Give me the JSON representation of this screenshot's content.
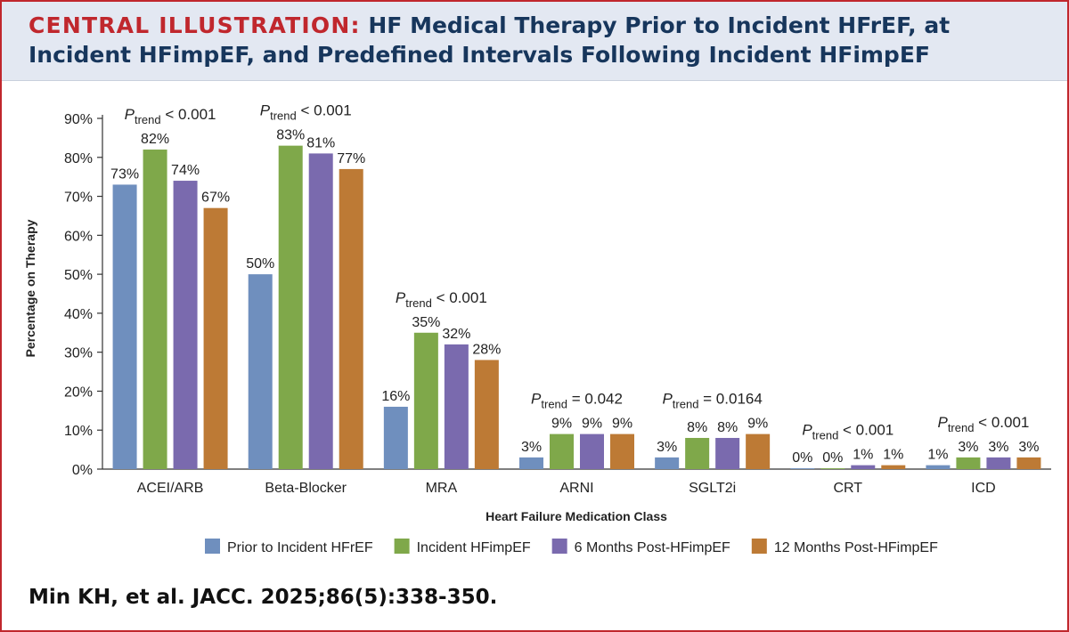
{
  "title": {
    "lead": "CENTRAL ILLUSTRATION:",
    "rest": "HF Medical Therapy Prior to Incident HFrEF, at Incident HFimpEF, and Predefined Intervals Following Incident HFimpEF"
  },
  "citation": "Min KH, et al. JACC. 2025;86(5):338-350.",
  "chart_data": {
    "type": "bar",
    "xlabel": "Heart Failure Medication Class",
    "ylabel": "Percentage on Therapy",
    "ylim": [
      0,
      90
    ],
    "yticks": [
      "0%",
      "10%",
      "20%",
      "30%",
      "40%",
      "50%",
      "60%",
      "70%",
      "80%",
      "90%"
    ],
    "legend_position": "bottom",
    "grid": false,
    "categories": [
      "ACEI/ARB",
      "Beta-Blocker",
      "MRA",
      "ARNI",
      "SGLT2i",
      "CRT",
      "ICD"
    ],
    "series": [
      {
        "name": "Prior to Incident HFrEF",
        "color": "#6f8fbe",
        "values": [
          73,
          50,
          16,
          3,
          3,
          0,
          1
        ],
        "labels": [
          "73%",
          "50%",
          "16%",
          "3%",
          "3%",
          "0%",
          "1%"
        ]
      },
      {
        "name": "Incident HFimpEF",
        "color": "#7fa84a",
        "values": [
          82,
          83,
          35,
          9,
          8,
          0,
          3
        ],
        "labels": [
          "82%",
          "83%",
          "35%",
          "9%",
          "8%",
          "0%",
          "3%"
        ]
      },
      {
        "name": "6 Months Post-HFimpEF",
        "color": "#7a6aae",
        "values": [
          74,
          81,
          32,
          9,
          8,
          1,
          3
        ],
        "labels": [
          "74%",
          "81%",
          "32%",
          "9%",
          "8%",
          "1%",
          "3%"
        ]
      },
      {
        "name": "12 Months Post-HFimpEF",
        "color": "#bd7a35",
        "values": [
          67,
          77,
          28,
          9,
          9,
          1,
          3
        ],
        "labels": [
          "67%",
          "77%",
          "28%",
          "9%",
          "9%",
          "1%",
          "3%"
        ]
      }
    ],
    "annotations": [
      {
        "prefix": "P",
        "sub": "trend",
        "value": "< 0.001"
      },
      {
        "prefix": "P",
        "sub": "trend",
        "value": "< 0.001"
      },
      {
        "prefix": "P",
        "sub": "trend",
        "value": "< 0.001"
      },
      {
        "prefix": "P",
        "sub": "trend",
        "value": "= 0.042"
      },
      {
        "prefix": "P",
        "sub": "trend",
        "value": "= 0.0164"
      },
      {
        "prefix": "P",
        "sub": "trend",
        "value": "< 0.001"
      },
      {
        "prefix": "P",
        "sub": "trend",
        "value": "< 0.001"
      }
    ]
  }
}
